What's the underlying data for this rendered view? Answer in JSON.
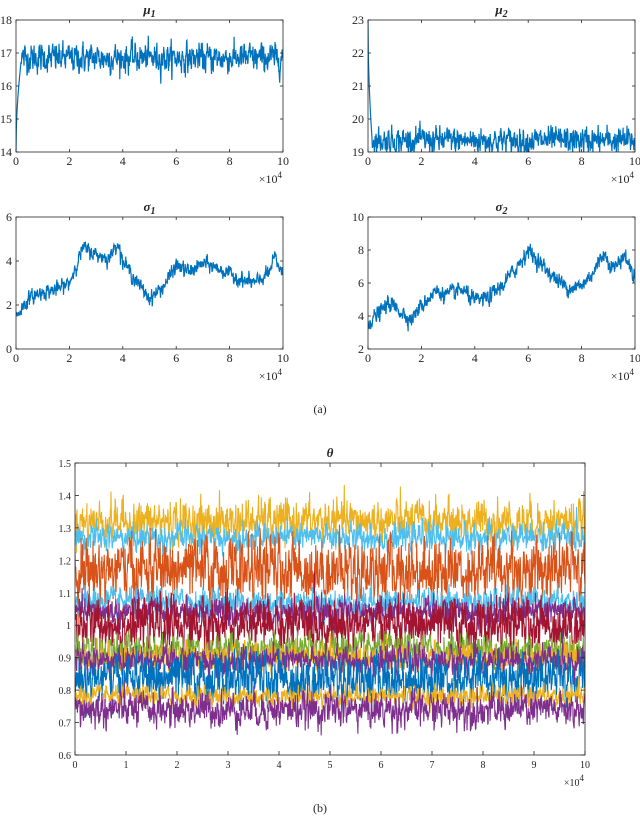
{
  "captions": {
    "a": "(a)",
    "b": "(b)"
  },
  "colors": {
    "blue": "#0072BD",
    "orange": "#D95319",
    "yellow": "#EDB120",
    "purple": "#7E2F8E",
    "green": "#77AC30",
    "cyan": "#4DBEEE",
    "red": "#A2142F"
  },
  "chart_data": [
    {
      "id": "mu1",
      "type": "line",
      "title_main": "μ",
      "title_sub": "1",
      "xlim": [
        0,
        100000
      ],
      "ylim": [
        14,
        18
      ],
      "xticks": [
        0,
        2,
        4,
        6,
        8,
        10
      ],
      "yticks": [
        14,
        15,
        16,
        17,
        18
      ],
      "x_multiplier_base": "×10",
      "x_multiplier_exp": "4",
      "series": [
        {
          "color": "#0072BD",
          "start": 14.0,
          "burn_in_end": 16.8,
          "burn_in_iters": 2000,
          "mean": 16.85,
          "noise": 0.2
        }
      ]
    },
    {
      "id": "mu2",
      "type": "line",
      "title_main": "μ",
      "title_sub": "2",
      "xlim": [
        0,
        100000
      ],
      "ylim": [
        19,
        23
      ],
      "xticks": [
        0,
        2,
        4,
        6,
        8,
        10
      ],
      "yticks": [
        19,
        20,
        21,
        22,
        23
      ],
      "x_multiplier_base": "×10",
      "x_multiplier_exp": "4",
      "series": [
        {
          "color": "#0072BD",
          "start": 23.0,
          "burn_in_end": 19.4,
          "burn_in_iters": 1500,
          "mean": 19.35,
          "noise": 0.18
        }
      ]
    },
    {
      "id": "sigma1",
      "type": "line",
      "title_main": "σ",
      "title_sub": "1",
      "xlim": [
        0,
        100000
      ],
      "ylim": [
        0,
        6
      ],
      "xticks": [
        0,
        2,
        4,
        6,
        8,
        10
      ],
      "yticks": [
        0,
        2,
        4,
        6
      ],
      "x_multiplier_base": "×10",
      "x_multiplier_exp": "4",
      "series": [
        {
          "color": "#0072BD",
          "noise": 0.15,
          "trend_x": [
            0,
            5000,
            10000,
            15000,
            20000,
            25000,
            30000,
            35000,
            38000,
            40000,
            45000,
            50000,
            55000,
            60000,
            65000,
            70000,
            75000,
            80000,
            85000,
            90000,
            95000,
            97000,
            100000
          ],
          "trend_y": [
            1.5,
            2.3,
            2.6,
            2.7,
            3.0,
            4.6,
            4.3,
            4.1,
            4.9,
            4.0,
            3.1,
            2.3,
            2.8,
            3.8,
            3.5,
            3.9,
            3.7,
            3.4,
            3.1,
            3.0,
            3.5,
            4.2,
            3.3
          ]
        }
      ]
    },
    {
      "id": "sigma2",
      "type": "line",
      "title_main": "σ",
      "title_sub": "2",
      "xlim": [
        0,
        100000
      ],
      "ylim": [
        2,
        10
      ],
      "xticks": [
        0,
        2,
        4,
        6,
        8,
        10
      ],
      "yticks": [
        2,
        4,
        6,
        8,
        10
      ],
      "x_multiplier_base": "×10",
      "x_multiplier_exp": "4",
      "series": [
        {
          "color": "#0072BD",
          "noise": 0.22,
          "trend_x": [
            0,
            3000,
            8000,
            12000,
            16000,
            20000,
            25000,
            30000,
            35000,
            40000,
            45000,
            50000,
            55000,
            60000,
            65000,
            70000,
            75000,
            80000,
            85000,
            88000,
            92000,
            96000,
            100000
          ],
          "trend_y": [
            3.6,
            4.0,
            4.8,
            4.3,
            3.8,
            4.6,
            5.5,
            5.3,
            5.6,
            4.9,
            5.1,
            5.8,
            6.8,
            8.0,
            7.1,
            6.3,
            5.7,
            5.8,
            6.8,
            7.8,
            6.9,
            7.7,
            6.3
          ]
        }
      ]
    },
    {
      "id": "theta",
      "type": "line",
      "title_main": "θ",
      "title_sub": "",
      "xlim": [
        0,
        100000
      ],
      "ylim": [
        0.6,
        1.5
      ],
      "xticks": [
        0,
        1,
        2,
        3,
        4,
        5,
        6,
        7,
        8,
        9,
        10
      ],
      "yticks": [
        0.6,
        0.7,
        0.8,
        0.9,
        1,
        1.1,
        1.2,
        1.3,
        1.4,
        1.5
      ],
      "x_multiplier_base": "×10",
      "x_multiplier_exp": "4",
      "series": [
        {
          "color": "#EDB120",
          "mean": 1.32,
          "noise": 0.03
        },
        {
          "color": "#4DBEEE",
          "mean": 1.27,
          "noise": 0.02
        },
        {
          "color": "#D95319",
          "mean": 1.17,
          "noise": 0.045
        },
        {
          "color": "#4DBEEE",
          "mean": 1.07,
          "noise": 0.02
        },
        {
          "color": "#7E2F8E",
          "mean": 1.04,
          "noise": 0.02
        },
        {
          "color": "#A2142F",
          "mean": 1.0,
          "noise": 0.035
        },
        {
          "color": "#77AC30",
          "mean": 0.925,
          "noise": 0.022
        },
        {
          "color": "#EDB120",
          "mean": 0.9,
          "noise": 0.02
        },
        {
          "color": "#7E2F8E",
          "mean": 0.89,
          "noise": 0.02
        },
        {
          "color": "#0072BD",
          "mean": 0.835,
          "noise": 0.035
        },
        {
          "color": "#EDB120",
          "mean": 0.78,
          "noise": 0.015
        },
        {
          "color": "#7E2F8E",
          "mean": 0.74,
          "noise": 0.025
        }
      ]
    }
  ]
}
